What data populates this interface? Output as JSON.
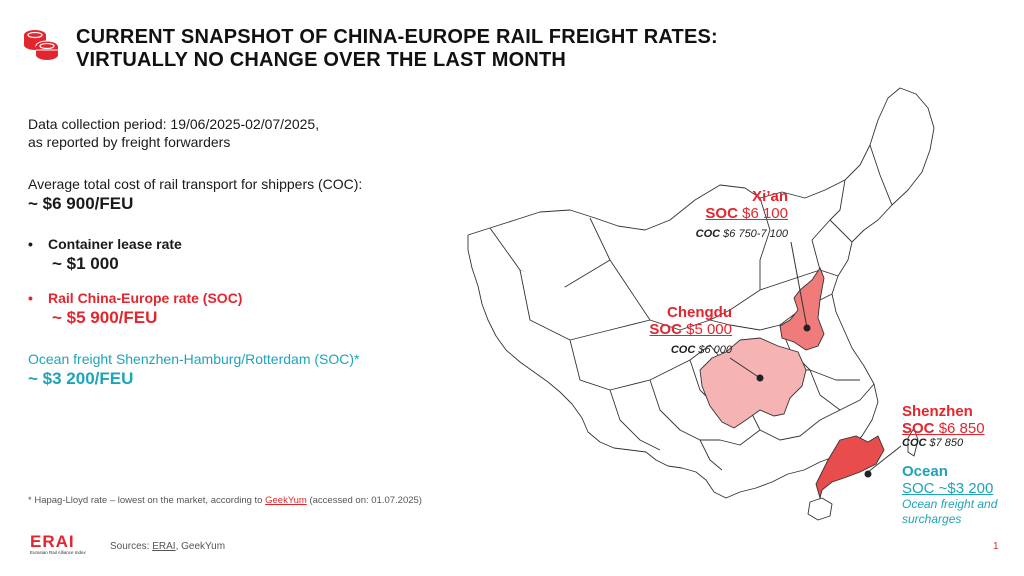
{
  "header": {
    "title_line1": "CURRENT SNAPSHOT OF CHINA-EUROPE RAIL FREIGHT RATES:",
    "title_line2": "VIRTUALLY NO CHANGE OVER THE LAST MONTH"
  },
  "intro": {
    "line1": "Data collection period: 19/06/2025-02/07/2025,",
    "line2": "as reported by freight forwarders"
  },
  "average": {
    "label": "Average total cost of rail transport for shippers (COC):",
    "value": "~ $6 900/FEU"
  },
  "bullets": [
    {
      "label": "Container lease rate",
      "value": "~ $1 000"
    },
    {
      "label": "Rail China-Europe rate (SOC)",
      "value": "~ $5 900/FEU"
    }
  ],
  "ocean_summary": {
    "label": "Ocean freight Shenzhen-Hamburg/Rotterdam (SOC)*",
    "value": "~ $3 200/FEU"
  },
  "map": {
    "xian": {
      "city": "Xi’an",
      "soc_label": "SOC",
      "soc_value": "$6 100",
      "coc_label": "COC",
      "coc_value": "$6 750-7 100"
    },
    "chengdu": {
      "city": "Chengdu",
      "soc_label": "SOC",
      "soc_value": "$5 000",
      "coc_label": "COC",
      "coc_value": "$6 000"
    },
    "shenzhen": {
      "city": "Shenzhen",
      "soc_label": "SOC",
      "soc_value": "$6 850",
      "coc_label": "COC",
      "coc_value": "$7 850"
    },
    "ocean": {
      "title": "Ocean",
      "soc": "SOC ~$3 200",
      "note_line1": "Ocean freight and",
      "note_line2": "surcharges"
    },
    "colors": {
      "xian": "#ef7b7b",
      "chengdu": "#f6b3b3",
      "shenzhen": "#e84c4c",
      "border": "#333333"
    }
  },
  "footnote": {
    "text": "* Hapag-Lloyd rate – lowest on the market, according to ",
    "link": "GeekYum",
    "suffix": " (accessed  on: 01.07.2025)"
  },
  "footer": {
    "sources_label": "Sources: ",
    "source1": "ERAI",
    "source2": ", GeekYum",
    "page_number": "1",
    "logo_text": "ERAI",
    "logo_sub": "Eurasian Rail Alliance Index"
  },
  "colors": {
    "accent_red": "#e3262e",
    "accent_teal": "#1fa3b8"
  }
}
